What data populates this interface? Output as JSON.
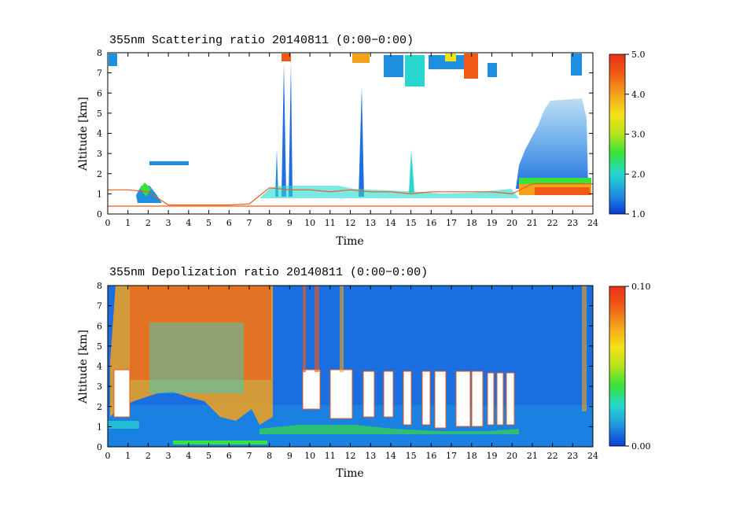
{
  "chart_data": [
    {
      "type": "heatmap",
      "title": "355nm Scattering ratio  20140811 (0:00−0:00)",
      "xlabel": "Time",
      "ylabel": "Altitude [km]",
      "xlim": [
        0,
        24
      ],
      "ylim": [
        0,
        8
      ],
      "x_ticks": [
        "0",
        "1",
        "2",
        "3",
        "4",
        "5",
        "6",
        "7",
        "8",
        "9",
        "10",
        "11",
        "12",
        "13",
        "14",
        "15",
        "16",
        "17",
        "18",
        "19",
        "20",
        "21",
        "22",
        "23",
        "24"
      ],
      "y_ticks": [
        "0",
        "1",
        "2",
        "3",
        "4",
        "5",
        "6",
        "7",
        "8"
      ],
      "colorbar": {
        "min": 1.0,
        "max": 5.0,
        "tick_labels": [
          "1.0",
          "2.0",
          "3.0",
          "4.0",
          "5.0"
        ],
        "tick_values": [
          1,
          2,
          3,
          4,
          5
        ]
      },
      "colormap": [
        "#0a3cd6",
        "#1f8fe0",
        "#27d7d0",
        "#38e23a",
        "#b6e21c",
        "#f2e21a",
        "#f4a21c",
        "#ef5a16",
        "#e8301a"
      ],
      "features": [
        {
          "label": "boundary layer top",
          "x": [
            0,
            1,
            2,
            3,
            4,
            5,
            6,
            7,
            8,
            9,
            10,
            11,
            12,
            13,
            14,
            15,
            16,
            17,
            18,
            19,
            20,
            21,
            22,
            23,
            24
          ],
          "y": [
            1.2,
            1.2,
            1.1,
            0.45,
            0.45,
            0.45,
            0.45,
            0.5,
            1.3,
            1.2,
            1.2,
            1.1,
            1.2,
            1.1,
            1.1,
            1.0,
            1.1,
            1.1,
            1.1,
            1.1,
            1.0,
            1.5,
            1.5,
            1.5,
            1.5
          ]
        },
        {
          "label": "ground line",
          "x": [
            0,
            24
          ],
          "y": [
            0.4,
            0.4
          ]
        }
      ]
    },
    {
      "type": "heatmap",
      "title": "355nm Depolization ratio  20140811 (0:00−0:00)",
      "xlabel": "Time",
      "ylabel": "Altitude [km]",
      "xlim": [
        0,
        24
      ],
      "ylim": [
        0,
        8
      ],
      "x_ticks": [
        "0",
        "1",
        "2",
        "3",
        "4",
        "5",
        "6",
        "7",
        "8",
        "9",
        "10",
        "11",
        "12",
        "13",
        "14",
        "15",
        "16",
        "17",
        "18",
        "19",
        "20",
        "21",
        "22",
        "23",
        "24"
      ],
      "y_ticks": [
        "0",
        "1",
        "2",
        "3",
        "4",
        "5",
        "6",
        "7",
        "8"
      ],
      "colorbar": {
        "min": 0.0,
        "max": 0.1,
        "tick_labels": [
          "0.00",
          "0.10"
        ],
        "tick_values": [
          0,
          0.1
        ]
      },
      "colormap": [
        "#0a3cd6",
        "#1f8fe0",
        "#27d7d0",
        "#38e23a",
        "#b6e21c",
        "#f2e21a",
        "#f4a21c",
        "#ef5a16",
        "#e8301a"
      ],
      "features": [
        {
          "label": "high depolarization (noise)",
          "x": [
            0.3,
            8.2
          ],
          "y": [
            1.5,
            8.0
          ]
        },
        {
          "label": "cloud gaps (white)",
          "x": [
            0.4,
            20.0
          ],
          "y": [
            1.2,
            3.8
          ]
        }
      ]
    }
  ]
}
